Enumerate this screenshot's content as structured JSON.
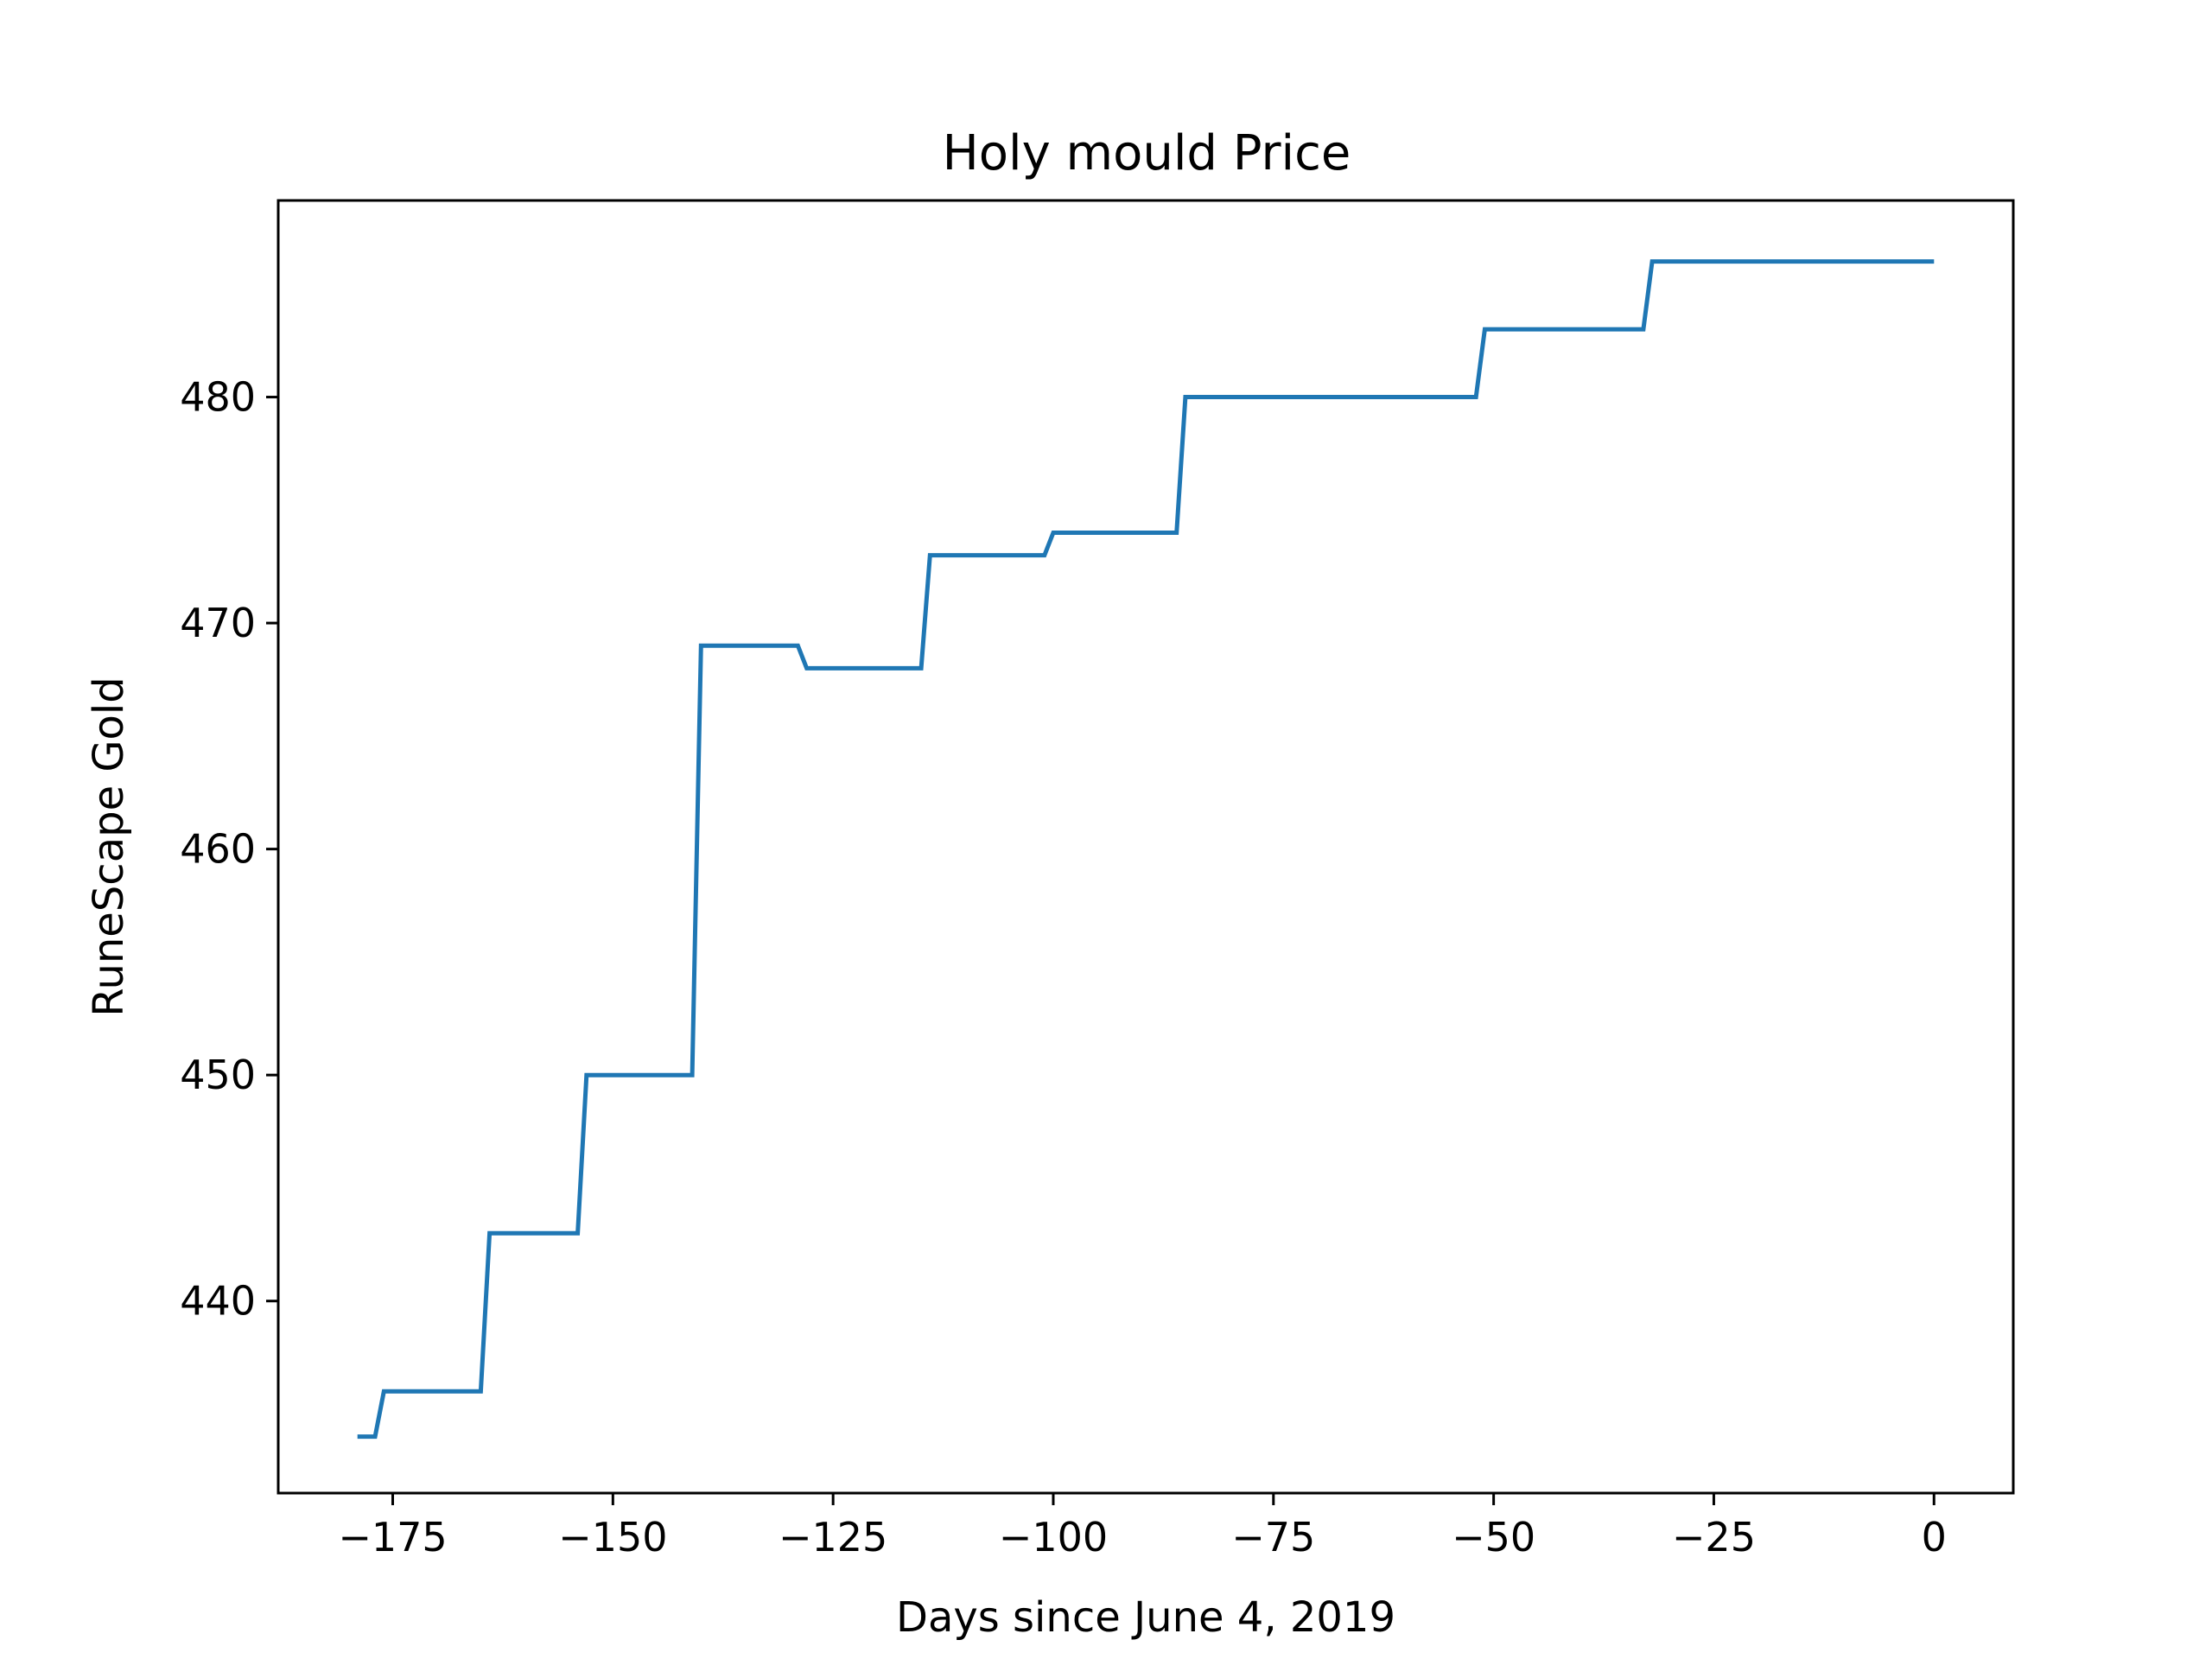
{
  "chart_data": {
    "type": "line",
    "title": "Holy mould Price",
    "xlabel": "Days since June 4, 2019",
    "ylabel": "RuneScape Gold",
    "xlim": [
      -188,
      9
    ],
    "ylim": [
      431.5,
      488.7
    ],
    "xticks": [
      -175,
      -150,
      -125,
      -100,
      -75,
      -50,
      -25,
      0
    ],
    "xtick_labels": [
      "−175",
      "−150",
      "−125",
      "−100",
      "−75",
      "−50",
      "−25",
      "0"
    ],
    "yticks": [
      440,
      450,
      460,
      470,
      480
    ],
    "ytick_labels": [
      "440",
      "450",
      "460",
      "470",
      "480"
    ],
    "grid": false,
    "legend": "none",
    "series": [
      {
        "color": "#1f77b4",
        "x": [
          -179,
          -177,
          -176,
          -165,
          -164,
          -154,
          -153,
          -141,
          -140,
          -129,
          -128,
          -115,
          -114,
          -101,
          -100,
          -86,
          -85,
          -52,
          -51,
          -33,
          -32,
          0
        ],
        "y": [
          434,
          434,
          436,
          436,
          443,
          443,
          450,
          450,
          469,
          469,
          468,
          468,
          473,
          473,
          474,
          474,
          480,
          480,
          483,
          483,
          486,
          486
        ]
      }
    ]
  }
}
